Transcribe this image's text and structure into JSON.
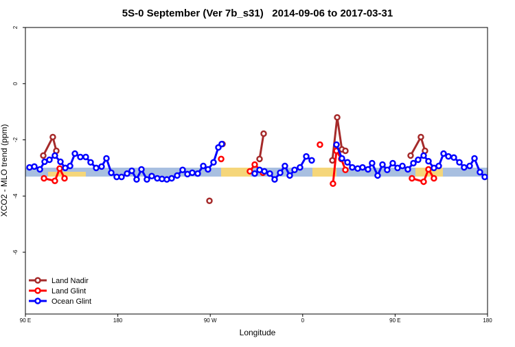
{
  "chart_data": {
    "type": "line",
    "title": "5S-0 September (Ver 7b_s31)   2014-09-06 to 2017-03-31",
    "x_label": "Longitude",
    "y_label": "XCO2 - MLO trend (ppm)",
    "xlim": [
      90,
      540
    ],
    "ylim": [
      -8.2,
      2
    ],
    "xticks": [
      {
        "value": 90,
        "label": "90 E"
      },
      {
        "value": 180,
        "label": "180"
      },
      {
        "value": 270,
        "label": "90 W"
      },
      {
        "value": 360,
        "label": "0"
      },
      {
        "value": 450,
        "label": "90 E"
      },
      {
        "value": 540,
        "label": "180"
      }
    ],
    "yticks": [
      2,
      0,
      -2,
      -4,
      -6
    ],
    "legend": "bottom-left",
    "series": [
      {
        "name": "Land Nadir",
        "color": "#a52a2a",
        "x": [
          107.4,
          116.7,
          120.1,
          null,
          269.2,
          null,
          281.9,
          null,
          318.0,
          322.0,
          null,
          388.9,
          393.6,
          398.2,
          401.6,
          null,
          465.1,
          475.1,
          479.1
        ],
        "values": [
          -2.56,
          -1.9,
          -2.39,
          null,
          -4.17,
          null,
          -2.15,
          null,
          -2.68,
          -1.78,
          null,
          -2.73,
          -1.2,
          -2.34,
          -2.39,
          null,
          -2.56,
          -1.9,
          -2.39
        ]
      },
      {
        "name": "Land Glint",
        "color": "#ff0000",
        "x": [
          108.1,
          118.7,
          123.4,
          128.1,
          null,
          280.6,
          null,
          308.6,
          313.3,
          321.3,
          null,
          376.8,
          null,
          389.5,
          392.9,
          397.6,
          401.6,
          null,
          466.4,
          477.8,
          482.5,
          487.8
        ],
        "values": [
          -3.37,
          -3.46,
          -3.02,
          -3.37,
          null,
          -2.68,
          null,
          -3.12,
          -2.88,
          -3.17,
          null,
          -2.17,
          null,
          -3.56,
          -2.39,
          -2.68,
          -3.07,
          null,
          -3.37,
          -3.49,
          -3.05,
          -3.37
        ]
      },
      {
        "name": "Ocean Glint",
        "color": "#0000ff",
        "x": [
          94.0,
          98.7,
          104.1,
          108.7,
          113.4,
          118.7,
          124.1,
          128.8,
          133.5,
          138.2,
          143.5,
          148.8,
          153.5,
          158.9,
          164.2,
          168.9,
          173.6,
          178.9,
          183.6,
          189.0,
          193.6,
          198.3,
          203.0,
          208.3,
          213.0,
          218.4,
          223.0,
          227.7,
          232.4,
          237.8,
          243.1,
          247.8,
          252.5,
          257.8,
          263.2,
          267.8,
          273.2,
          277.9,
          281.2,
          null,
          313.3,
          318.0,
          322.7,
          328.0,
          332.7,
          338.1,
          342.7,
          347.4,
          352.1,
          357.4,
          363.5,
          368.8,
          null,
          392.9,
          398.2,
          403.6,
          408.3,
          413.6,
          418.3,
          423.6,
          427.6,
          433.0,
          437.7,
          442.3,
          447.7,
          452.4,
          457.1,
          462.4,
          467.8,
          472.4,
          477.8,
          482.5,
          487.8,
          492.5,
          497.2,
          501.9,
          507.2,
          512.6,
          517.2,
          522.6,
          527.3,
          532.6,
          537.3
        ],
        "values": [
          -2.98,
          -2.95,
          -3.05,
          -2.78,
          -2.71,
          -2.56,
          -2.78,
          -3.0,
          -2.93,
          -2.49,
          -2.61,
          -2.61,
          -2.8,
          -3.0,
          -2.95,
          -2.66,
          -3.17,
          -3.32,
          -3.32,
          -3.2,
          -3.1,
          -3.41,
          -3.05,
          -3.41,
          -3.29,
          -3.37,
          -3.39,
          -3.41,
          -3.37,
          -3.27,
          -3.07,
          -3.22,
          -3.17,
          -3.2,
          -2.93,
          -3.05,
          -2.8,
          -2.27,
          -2.15,
          null,
          -3.2,
          -3.07,
          -3.12,
          -3.2,
          -3.41,
          -3.17,
          -2.93,
          -3.27,
          -3.07,
          -2.98,
          -2.59,
          -2.73,
          null,
          -2.17,
          -2.66,
          -2.8,
          -2.98,
          -3.02,
          -2.98,
          -3.05,
          -2.83,
          -3.27,
          -2.88,
          -3.07,
          -2.83,
          -3.0,
          -2.93,
          -3.05,
          -2.83,
          -2.71,
          -2.56,
          -2.76,
          -3.0,
          -2.93,
          -2.49,
          -2.59,
          -2.63,
          -2.8,
          -2.98,
          -2.93,
          -2.66,
          -3.15,
          -3.32
        ]
      }
    ]
  }
}
